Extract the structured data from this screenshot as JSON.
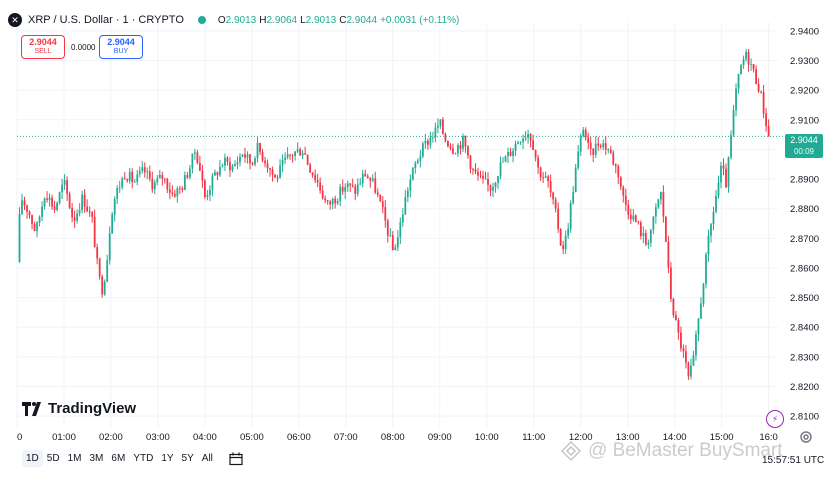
{
  "legend": {
    "symbol_icon": "xrp-icon",
    "title": "XRP / U.S. Dollar · 1 · CRYPTO",
    "ohlc": [
      {
        "label": "O",
        "value": "2.9013"
      },
      {
        "label": "H",
        "value": "2.9064"
      },
      {
        "label": "L",
        "value": "2.9013"
      },
      {
        "label": "C",
        "value": "2.9044"
      }
    ],
    "change": "+0.0031 (+0.11%)"
  },
  "trade": {
    "sell_price": "2.9044",
    "sell_label": "SELL",
    "spread": "0.0000",
    "buy_price": "2.9044",
    "buy_label": "BUY"
  },
  "price_tag": {
    "price": "2.9044",
    "countdown": "00:09"
  },
  "brand": "TradingView",
  "ranges": [
    "1D",
    "5D",
    "1M",
    "3M",
    "6M",
    "YTD",
    "1Y",
    "5Y",
    "All"
  ],
  "time_readout": "15:57:51 UTC",
  "watermark": "@ BeMaster BuySmart",
  "colors": {
    "up": "#22ab94",
    "down": "#f23645",
    "grid": "#f0f3fa",
    "last_price_line": "#22ab94"
  },
  "chart_data": {
    "type": "candlestick",
    "x_ticks": [
      "0",
      "01:00",
      "02:00",
      "03:00",
      "04:00",
      "05:00",
      "06:00",
      "07:00",
      "08:00",
      "09:00",
      "10:00",
      "11:00",
      "12:00",
      "13:00",
      "14:00",
      "15:00",
      "16:0"
    ],
    "y_ticks": [
      "2.9400",
      "2.9300",
      "2.9200",
      "2.9100",
      "2.9000",
      "2.8900",
      "2.8800",
      "2.8700",
      "2.8600",
      "2.8500",
      "2.8400",
      "2.8300",
      "2.8200",
      "2.8100"
    ],
    "ylim": [
      2.806,
      2.943
    ],
    "xlim": [
      0,
      16.2
    ],
    "last_price": 2.9044,
    "close_path": [
      [
        0.0,
        2.862
      ],
      [
        0.08,
        2.884
      ],
      [
        0.25,
        2.879
      ],
      [
        0.4,
        2.872
      ],
      [
        0.6,
        2.886
      ],
      [
        0.8,
        2.88
      ],
      [
        1.0,
        2.889
      ],
      [
        1.2,
        2.876
      ],
      [
        1.4,
        2.884
      ],
      [
        1.6,
        2.876
      ],
      [
        1.7,
        2.862
      ],
      [
        1.8,
        2.852
      ],
      [
        1.9,
        2.86
      ],
      [
        2.0,
        2.878
      ],
      [
        2.1,
        2.885
      ],
      [
        2.3,
        2.892
      ],
      [
        2.5,
        2.889
      ],
      [
        2.7,
        2.893
      ],
      [
        2.9,
        2.888
      ],
      [
        3.1,
        2.891
      ],
      [
        3.3,
        2.885
      ],
      [
        3.5,
        2.887
      ],
      [
        3.7,
        2.895
      ],
      [
        3.8,
        2.9
      ],
      [
        3.9,
        2.893
      ],
      [
        4.0,
        2.884
      ],
      [
        4.2,
        2.891
      ],
      [
        4.4,
        2.896
      ],
      [
        4.6,
        2.894
      ],
      [
        4.8,
        2.899
      ],
      [
        5.0,
        2.895
      ],
      [
        5.1,
        2.901
      ],
      [
        5.3,
        2.896
      ],
      [
        5.5,
        2.89
      ],
      [
        5.7,
        2.896
      ],
      [
        5.9,
        2.899
      ],
      [
        6.1,
        2.9
      ],
      [
        6.2,
        2.895
      ],
      [
        6.4,
        2.889
      ],
      [
        6.6,
        2.881
      ],
      [
        6.8,
        2.884
      ],
      [
        7.0,
        2.888
      ],
      [
        7.2,
        2.886
      ],
      [
        7.4,
        2.892
      ],
      [
        7.6,
        2.888
      ],
      [
        7.8,
        2.878
      ],
      [
        8.0,
        2.866
      ],
      [
        8.1,
        2.87
      ],
      [
        8.3,
        2.886
      ],
      [
        8.5,
        2.896
      ],
      [
        8.7,
        2.902
      ],
      [
        8.9,
        2.906
      ],
      [
        9.0,
        2.909
      ],
      [
        9.1,
        2.904
      ],
      [
        9.3,
        2.9
      ],
      [
        9.5,
        2.903
      ],
      [
        9.7,
        2.893
      ],
      [
        9.9,
        2.889
      ],
      [
        10.1,
        2.887
      ],
      [
        10.3,
        2.895
      ],
      [
        10.5,
        2.899
      ],
      [
        10.7,
        2.904
      ],
      [
        10.9,
        2.906
      ],
      [
        11.0,
        2.901
      ],
      [
        11.1,
        2.893
      ],
      [
        11.3,
        2.889
      ],
      [
        11.5,
        2.876
      ],
      [
        11.6,
        2.866
      ],
      [
        11.7,
        2.871
      ],
      [
        11.9,
        2.894
      ],
      [
        12.05,
        2.908
      ],
      [
        12.2,
        2.898
      ],
      [
        12.4,
        2.903
      ],
      [
        12.6,
        2.9
      ],
      [
        12.8,
        2.892
      ],
      [
        12.9,
        2.884
      ],
      [
        13.0,
        2.88
      ],
      [
        13.2,
        2.875
      ],
      [
        13.4,
        2.868
      ],
      [
        13.55,
        2.876
      ],
      [
        13.7,
        2.886
      ],
      [
        13.8,
        2.872
      ],
      [
        13.9,
        2.852
      ],
      [
        14.0,
        2.843
      ],
      [
        14.1,
        2.836
      ],
      [
        14.2,
        2.83
      ],
      [
        14.3,
        2.822
      ],
      [
        14.4,
        2.829
      ],
      [
        14.55,
        2.848
      ],
      [
        14.7,
        2.867
      ],
      [
        14.85,
        2.882
      ],
      [
        15.0,
        2.894
      ],
      [
        15.1,
        2.888
      ],
      [
        15.2,
        2.904
      ],
      [
        15.3,
        2.919
      ],
      [
        15.4,
        2.927
      ],
      [
        15.5,
        2.932
      ],
      [
        15.6,
        2.93
      ],
      [
        15.7,
        2.925
      ],
      [
        15.8,
        2.921
      ],
      [
        15.9,
        2.913
      ],
      [
        16.0,
        2.9044
      ]
    ]
  }
}
